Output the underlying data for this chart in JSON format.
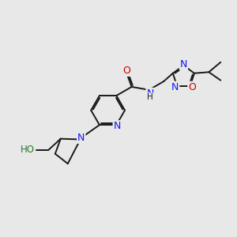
{
  "background_color": "#e8e8e8",
  "bond_color": "#1a1a1a",
  "bond_width": 1.4,
  "atom_colors": {
    "N": "#1414ff",
    "O": "#cc0000",
    "HO_N": "#2b7a2b",
    "C": "#1a1a1a"
  },
  "figsize": [
    3.0,
    3.0
  ],
  "dpi": 100
}
